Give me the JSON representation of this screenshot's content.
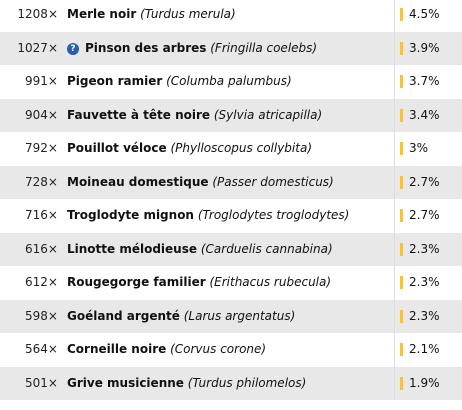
{
  "rows": [
    {
      "count": "1208×",
      "name": "Merle noir",
      "latin": "(Turdus merula)",
      "share": "4.5%"
    },
    {
      "count": "1027×",
      "name": "Pinson des arbres",
      "latin": "(Fringilla coelebs)",
      "share": "3.9%",
      "help_icon": true
    },
    {
      "count": "991×",
      "name": "Pigeon ramier",
      "latin": "(Columba palumbus)",
      "share": "3.7%"
    },
    {
      "count": "904×",
      "name": "Fauvette à tête noire",
      "latin": "(Sylvia atricapilla)",
      "share": "3.4%"
    },
    {
      "count": "792×",
      "name": "Pouillot véloce",
      "latin": "(Phylloscopus collybita)",
      "share": "3%"
    },
    {
      "count": "728×",
      "name": "Moineau domestique",
      "latin": "(Passer domesticus)",
      "share": "2.7%"
    },
    {
      "count": "716×",
      "name": "Troglodyte mignon",
      "latin": "(Troglodytes troglodytes)",
      "share": "2.7%"
    },
    {
      "count": "616×",
      "name": "Linotte mélodieuse",
      "latin": "(Carduelis cannabina)",
      "share": "2.3%"
    },
    {
      "count": "612×",
      "name": "Rougegorge familier",
      "latin": "(Erithacus rubecula)",
      "share": "2.3%"
    },
    {
      "count": "598×",
      "name": "Goéland argenté",
      "latin": "(Larus argentatus)",
      "share": "2.3%"
    },
    {
      "count": "564×",
      "name": "Corneille noire",
      "latin": "(Corvus corone)",
      "share": "2.1%"
    },
    {
      "count": "501×",
      "name": "Grive musicienne",
      "latin": "(Turdus philomelos)",
      "share": "1.9%"
    }
  ]
}
